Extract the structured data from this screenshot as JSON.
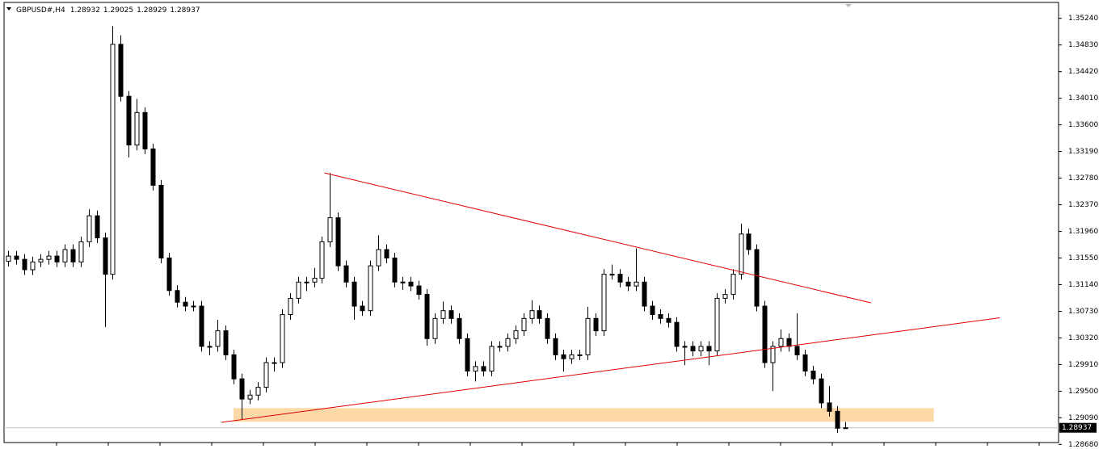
{
  "chart_data": {
    "type": "candlestick",
    "title": "GBPUSD#,H4",
    "header_values": [
      1.28932,
      1.29025,
      1.28929,
      1.28937
    ],
    "open": [
      1.315,
      1.3158,
      1.3153,
      1.3137,
      1.3149,
      1.3153,
      1.3158,
      1.3149,
      1.3168,
      1.3149,
      1.318,
      1.322,
      1.3186,
      1.313,
      1.3484,
      1.3404,
      1.3329,
      1.3379,
      1.3323,
      1.3267,
      1.3155,
      1.3105,
      1.3087,
      1.3081,
      1.3081,
      1.3019,
      1.3019,
      1.3043,
      1.3006,
      1.2969,
      1.2938,
      1.2944,
      1.2956,
      1.2994,
      1.2994,
      1.3068,
      1.3093,
      1.3118,
      1.3118,
      1.3124,
      1.318,
      1.3217,
      1.3143,
      1.3118,
      1.3081,
      1.3074,
      1.3143,
      1.3168,
      1.3155,
      1.3118,
      1.3118,
      1.3112,
      1.3099,
      1.3031,
      1.3062,
      1.3074,
      1.3062,
      1.3031,
      1.2981,
      1.2988,
      1.2981,
      1.3019,
      1.3019,
      1.3031,
      1.3043,
      1.3062,
      1.3074,
      1.3062,
      1.3031,
      1.3006,
      1.3,
      1.3006,
      1.3006,
      1.3062,
      1.3043,
      1.313,
      1.313,
      1.3118,
      1.3112,
      1.3118,
      1.3081,
      1.3068,
      1.3062,
      1.3056,
      1.3019,
      1.3019,
      1.3012,
      1.3019,
      1.3012,
      1.3093,
      1.3099,
      1.313,
      1.3192,
      1.3168,
      1.3081,
      1.2994,
      1.3019,
      1.3031,
      1.3019,
      1.3006,
      1.2981,
      1.2969,
      1.2932,
      1.2919,
      1.28932
    ],
    "high": [
      1.3166,
      1.3166,
      1.3161,
      1.3157,
      1.3161,
      1.3166,
      1.3166,
      1.3176,
      1.3176,
      1.3188,
      1.323,
      1.3228,
      1.3194,
      1.3512,
      1.3498,
      1.3412,
      1.34,
      1.3387,
      1.3331,
      1.3275,
      1.3163,
      1.3113,
      1.3095,
      1.3089,
      1.3089,
      1.3027,
      1.306,
      1.3051,
      1.3014,
      1.2977,
      1.2952,
      1.2964,
      1.3002,
      1.3002,
      1.3076,
      1.3101,
      1.3126,
      1.3126,
      1.314,
      1.3188,
      1.3286,
      1.3225,
      1.3151,
      1.3126,
      1.3089,
      1.3151,
      1.319,
      1.3176,
      1.3163,
      1.3126,
      1.3126,
      1.312,
      1.3107,
      1.307,
      1.3088,
      1.3082,
      1.307,
      1.3039,
      1.2996,
      1.2996,
      1.3027,
      1.3027,
      1.3039,
      1.3051,
      1.307,
      1.309,
      1.3082,
      1.307,
      1.3039,
      1.3014,
      1.3014,
      1.3014,
      1.308,
      1.307,
      1.3138,
      1.3145,
      1.3138,
      1.3126,
      1.317,
      1.3126,
      1.3089,
      1.3076,
      1.307,
      1.3064,
      1.3027,
      1.3027,
      1.3027,
      1.3027,
      1.3101,
      1.3107,
      1.3138,
      1.3208,
      1.32,
      1.3176,
      1.3089,
      1.3027,
      1.3045,
      1.3039,
      1.307,
      1.3014,
      1.2989,
      1.2977,
      1.2958,
      1.2927,
      1.29025
    ],
    "low": [
      1.3142,
      1.3145,
      1.3129,
      1.3129,
      1.3141,
      1.3145,
      1.3141,
      1.3141,
      1.3141,
      1.3141,
      1.3172,
      1.3178,
      1.3049,
      1.3122,
      1.3396,
      1.331,
      1.3321,
      1.3315,
      1.3259,
      1.3147,
      1.3097,
      1.3079,
      1.3073,
      1.3073,
      1.3011,
      1.3005,
      1.3011,
      1.2998,
      1.2961,
      1.2907,
      1.293,
      1.2936,
      1.2948,
      1.298,
      1.2986,
      1.306,
      1.3085,
      1.3104,
      1.311,
      1.3116,
      1.3172,
      1.3135,
      1.311,
      1.306,
      1.3066,
      1.3066,
      1.3135,
      1.3147,
      1.311,
      1.3106,
      1.3104,
      1.3091,
      1.302,
      1.3023,
      1.3054,
      1.3054,
      1.3023,
      1.2973,
      1.2965,
      1.2973,
      1.2973,
      1.3011,
      1.3011,
      1.3023,
      1.3035,
      1.3054,
      1.3054,
      1.3023,
      1.2998,
      1.298,
      1.2992,
      1.2998,
      1.2998,
      1.3035,
      1.3035,
      1.3122,
      1.311,
      1.3104,
      1.3104,
      1.3073,
      1.306,
      1.3054,
      1.3048,
      1.3011,
      1.299,
      1.3004,
      1.3004,
      1.299,
      1.3004,
      1.3085,
      1.3091,
      1.3122,
      1.316,
      1.3073,
      1.2986,
      1.295,
      1.3011,
      1.3011,
      1.2998,
      1.2973,
      1.2961,
      1.2924,
      1.2911,
      1.2886,
      1.28929
    ],
    "close": [
      1.3158,
      1.3153,
      1.3137,
      1.3149,
      1.3153,
      1.3158,
      1.3149,
      1.3168,
      1.3149,
      1.318,
      1.322,
      1.3186,
      1.313,
      1.3484,
      1.3404,
      1.3329,
      1.3379,
      1.3323,
      1.3267,
      1.3155,
      1.3105,
      1.3087,
      1.3081,
      1.3081,
      1.3019,
      1.3019,
      1.3043,
      1.3006,
      1.2969,
      1.2938,
      1.2944,
      1.2956,
      1.2994,
      1.2994,
      1.3068,
      1.3093,
      1.3118,
      1.3118,
      1.3124,
      1.318,
      1.3217,
      1.3143,
      1.3118,
      1.3081,
      1.3074,
      1.3143,
      1.3168,
      1.3155,
      1.3118,
      1.3118,
      1.3112,
      1.3099,
      1.3031,
      1.3062,
      1.3074,
      1.3062,
      1.3031,
      1.2981,
      1.2988,
      1.2981,
      1.3019,
      1.3019,
      1.3031,
      1.3043,
      1.3062,
      1.3074,
      1.3062,
      1.3031,
      1.3006,
      1.3,
      1.3006,
      1.3006,
      1.3062,
      1.3043,
      1.313,
      1.313,
      1.3118,
      1.3112,
      1.3118,
      1.3081,
      1.3068,
      1.3062,
      1.3056,
      1.3019,
      1.3019,
      1.3012,
      1.3019,
      1.3012,
      1.3093,
      1.3099,
      1.313,
      1.3192,
      1.3168,
      1.3081,
      1.2994,
      1.3019,
      1.3031,
      1.3019,
      1.3006,
      1.2981,
      1.2969,
      1.2932,
      1.2919,
      1.2893,
      1.28937
    ],
    "xlim": [
      -0.5,
      130.5
    ],
    "ylim": [
      1.2866,
      1.3546
    ],
    "yticks": [
      {
        "value": 1.3524,
        "label": "1.35240"
      },
      {
        "value": 1.3483,
        "label": "1.34830"
      },
      {
        "value": 1.3442,
        "label": "1.34420"
      },
      {
        "value": 1.3401,
        "label": "1.34010"
      },
      {
        "value": 1.336,
        "label": "1.33600"
      },
      {
        "value": 1.3319,
        "label": "1.33190"
      },
      {
        "value": 1.3278,
        "label": "1.32780"
      },
      {
        "value": 1.3237,
        "label": "1.32370"
      },
      {
        "value": 1.3196,
        "label": "1.31960"
      },
      {
        "value": 1.3155,
        "label": "1.31550"
      },
      {
        "value": 1.3114,
        "label": "1.31140"
      },
      {
        "value": 1.3073,
        "label": "1.30730"
      },
      {
        "value": 1.3032,
        "label": "1.30320"
      },
      {
        "value": 1.2991,
        "label": "1.29910"
      },
      {
        "value": 1.295,
        "label": "1.29500"
      },
      {
        "value": 1.2909,
        "label": "1.29090"
      },
      {
        "value": 1.2868,
        "label": "1.28680"
      }
    ],
    "current_price": 1.28937,
    "trendlines": [
      {
        "from": [
          39.3,
          1.3286
        ],
        "to": [
          107.2,
          1.3086
        ],
        "color": "#e00000"
      },
      {
        "from": [
          26.5,
          1.2902
        ],
        "to": [
          123.2,
          1.3063
        ],
        "color": "#e00000"
      }
    ],
    "zone": {
      "x": [
        28,
        115
      ],
      "y": [
        1.2903,
        1.2924
      ],
      "color": "#fcd9a6"
    }
  }
}
